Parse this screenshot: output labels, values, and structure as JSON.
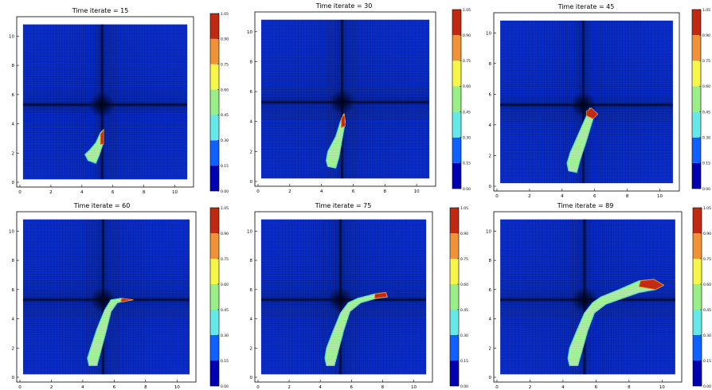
{
  "chart_data": [
    {
      "type": "heatmap",
      "title": "Time iterate = 15",
      "xlim": [
        0,
        11
      ],
      "ylim": [
        0,
        11
      ],
      "xticks": [
        "0",
        "2",
        "4",
        "6",
        "8",
        "10"
      ],
      "yticks": [
        "0",
        "2",
        "4",
        "6",
        "8",
        "10"
      ],
      "colorbar": {
        "min": 0.0,
        "max": 1.05,
        "ticks": [
          "0.00",
          "0.15",
          "0.30",
          "0.45",
          "0.60",
          "0.75",
          "0.90",
          "1.05"
        ]
      },
      "cross_center": [
        5.3,
        5.3
      ],
      "bubble_path": [
        [
          4.4,
          1.5
        ],
        [
          4.9,
          1.3
        ],
        [
          5.1,
          1.8
        ],
        [
          5.35,
          2.6
        ],
        [
          5.4,
          3.6
        ],
        [
          5.2,
          3.4
        ],
        [
          4.9,
          2.7
        ],
        [
          4.5,
          2.2
        ],
        [
          4.2,
          1.9
        ]
      ],
      "high_region": [
        [
          5.2,
          2.6
        ],
        [
          5.4,
          2.6
        ],
        [
          5.4,
          3.6
        ],
        [
          5.2,
          3.3
        ]
      ]
    },
    {
      "type": "heatmap",
      "title": "Time iterate = 30",
      "xlim": [
        0,
        11
      ],
      "ylim": [
        0,
        11
      ],
      "xticks": [
        "0",
        "2",
        "4",
        "6",
        "8",
        "10"
      ],
      "yticks": [
        "0",
        "2",
        "4",
        "6",
        "8",
        "10"
      ],
      "colorbar": {
        "min": 0.0,
        "max": 1.05,
        "ticks": [
          "0.00",
          "0.15",
          "0.30",
          "0.45",
          "0.60",
          "0.75",
          "0.90",
          "1.05"
        ]
      },
      "cross_center": [
        5.3,
        5.3
      ],
      "bubble_path": [
        [
          4.4,
          1.0
        ],
        [
          4.9,
          0.9
        ],
        [
          5.1,
          1.6
        ],
        [
          5.3,
          2.8
        ],
        [
          5.5,
          4.0
        ],
        [
          5.4,
          4.5
        ],
        [
          5.2,
          4.0
        ],
        [
          4.9,
          3.0
        ],
        [
          4.4,
          2.0
        ],
        [
          4.3,
          1.4
        ]
      ],
      "high_region": [
        [
          5.25,
          3.6
        ],
        [
          5.5,
          3.7
        ],
        [
          5.45,
          4.5
        ],
        [
          5.25,
          4.2
        ]
      ]
    },
    {
      "type": "heatmap",
      "title": "Time iterate = 45",
      "xlim": [
        0,
        11
      ],
      "ylim": [
        0,
        11
      ],
      "xticks": [
        "0",
        "2",
        "4",
        "6",
        "8",
        "10"
      ],
      "yticks": [
        "0",
        "2",
        "4",
        "6",
        "8",
        "10"
      ],
      "colorbar": {
        "min": 0.0,
        "max": 1.05,
        "ticks": [
          "0.00",
          "0.15",
          "0.30",
          "0.45",
          "0.60",
          "0.75",
          "0.90",
          "1.05"
        ]
      },
      "cross_center": [
        5.3,
        5.3
      ],
      "bubble_path": [
        [
          4.4,
          1.0
        ],
        [
          4.9,
          0.9
        ],
        [
          5.1,
          1.7
        ],
        [
          5.5,
          3.0
        ],
        [
          5.9,
          4.4
        ],
        [
          6.1,
          4.8
        ],
        [
          5.7,
          5.1
        ],
        [
          5.5,
          4.6
        ],
        [
          5.0,
          3.4
        ],
        [
          4.5,
          2.2
        ],
        [
          4.3,
          1.5
        ]
      ],
      "high_region": [
        [
          5.5,
          4.6
        ],
        [
          5.9,
          4.4
        ],
        [
          6.2,
          4.7
        ],
        [
          5.8,
          5.1
        ],
        [
          5.5,
          4.9
        ]
      ]
    },
    {
      "type": "heatmap",
      "title": "Time iterate = 60",
      "xlim": [
        0,
        11
      ],
      "ylim": [
        0,
        11
      ],
      "xticks": [
        "0",
        "2",
        "4",
        "6",
        "8",
        "10"
      ],
      "yticks": [
        "0",
        "2",
        "4",
        "6",
        "8",
        "10"
      ],
      "colorbar": {
        "min": 0.0,
        "max": 1.05,
        "ticks": [
          "0.00",
          "0.15",
          "0.30",
          "0.45",
          "0.60",
          "0.75",
          "0.90",
          "1.05"
        ]
      },
      "cross_center": [
        5.3,
        5.3
      ],
      "bubble_path": [
        [
          4.4,
          0.8
        ],
        [
          4.9,
          0.8
        ],
        [
          5.1,
          1.6
        ],
        [
          5.5,
          3.2
        ],
        [
          5.8,
          4.5
        ],
        [
          6.2,
          5.1
        ],
        [
          7.2,
          5.3
        ],
        [
          6.4,
          5.4
        ],
        [
          5.8,
          5.3
        ],
        [
          5.4,
          4.6
        ],
        [
          4.9,
          3.3
        ],
        [
          4.5,
          2.0
        ],
        [
          4.3,
          1.3
        ]
      ],
      "high_region": [
        [
          6.4,
          5.15
        ],
        [
          7.2,
          5.3
        ],
        [
          6.5,
          5.4
        ]
      ]
    },
    {
      "type": "heatmap",
      "title": "Time iterate = 75",
      "xlim": [
        0,
        11
      ],
      "ylim": [
        0,
        11
      ],
      "xticks": [
        "0",
        "2",
        "4",
        "6",
        "8",
        "10"
      ],
      "yticks": [
        "0",
        "2",
        "4",
        "6",
        "8",
        "10"
      ],
      "colorbar": {
        "min": 0.0,
        "max": 1.05,
        "ticks": [
          "0.00",
          "0.15",
          "0.30",
          "0.45",
          "0.60",
          "0.75",
          "0.90",
          "1.05"
        ]
      },
      "cross_center": [
        5.3,
        5.3
      ],
      "bubble_path": [
        [
          4.4,
          0.8
        ],
        [
          4.9,
          0.8
        ],
        [
          5.1,
          1.6
        ],
        [
          5.5,
          3.2
        ],
        [
          5.9,
          4.5
        ],
        [
          6.6,
          5.1
        ],
        [
          7.6,
          5.4
        ],
        [
          8.3,
          5.5
        ],
        [
          8.2,
          5.8
        ],
        [
          7.5,
          5.7
        ],
        [
          6.4,
          5.4
        ],
        [
          5.8,
          5.1
        ],
        [
          5.3,
          4.4
        ],
        [
          4.8,
          3.1
        ],
        [
          4.4,
          2.0
        ],
        [
          4.3,
          1.3
        ]
      ],
      "high_region": [
        [
          7.5,
          5.4
        ],
        [
          8.3,
          5.5
        ],
        [
          8.2,
          5.8
        ],
        [
          7.5,
          5.7
        ]
      ]
    },
    {
      "type": "heatmap",
      "title": "Time iterate = 89",
      "xlim": [
        0,
        11
      ],
      "ylim": [
        0,
        11
      ],
      "xticks": [
        "0",
        "2",
        "4",
        "6",
        "8",
        "10"
      ],
      "yticks": [
        "0",
        "2",
        "4",
        "6",
        "8",
        "10"
      ],
      "colorbar": {
        "min": 0.0,
        "max": 1.05,
        "ticks": [
          "0.00",
          "0.15",
          "0.30",
          "0.45",
          "0.60",
          "0.75",
          "0.90",
          "1.05"
        ]
      },
      "cross_center": [
        5.3,
        5.3
      ],
      "bubble_path": [
        [
          4.4,
          0.8
        ],
        [
          4.9,
          0.8
        ],
        [
          5.1,
          1.6
        ],
        [
          5.5,
          3.2
        ],
        [
          5.9,
          4.4
        ],
        [
          6.6,
          5.0
        ],
        [
          7.6,
          5.4
        ],
        [
          8.6,
          5.8
        ],
        [
          9.6,
          6.0
        ],
        [
          10.1,
          6.3
        ],
        [
          9.5,
          6.7
        ],
        [
          8.6,
          6.6
        ],
        [
          7.4,
          6.0
        ],
        [
          6.3,
          5.5
        ],
        [
          5.8,
          5.1
        ],
        [
          5.3,
          4.4
        ],
        [
          4.8,
          3.1
        ],
        [
          4.4,
          2.0
        ],
        [
          4.3,
          1.3
        ]
      ],
      "high_region": [
        [
          8.6,
          6.2
        ],
        [
          9.6,
          6.0
        ],
        [
          10.1,
          6.3
        ],
        [
          9.5,
          6.7
        ],
        [
          8.7,
          6.6
        ]
      ]
    }
  ],
  "colors": {
    "background": "#0a2cc4",
    "cmap": [
      "#0000b0",
      "#1060ff",
      "#66e8e8",
      "#99ee88",
      "#f5f54a",
      "#f09238",
      "#c02a12"
    ]
  }
}
